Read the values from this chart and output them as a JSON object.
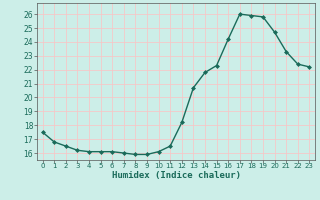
{
  "x": [
    0,
    1,
    2,
    3,
    4,
    5,
    6,
    7,
    8,
    9,
    10,
    11,
    12,
    13,
    14,
    15,
    16,
    17,
    18,
    19,
    20,
    21,
    22,
    23
  ],
  "y": [
    17.5,
    16.8,
    16.5,
    16.2,
    16.1,
    16.1,
    16.1,
    16.0,
    15.9,
    15.9,
    16.1,
    16.5,
    18.2,
    20.7,
    21.8,
    22.3,
    24.2,
    26.0,
    25.9,
    25.8,
    24.7,
    23.3,
    22.4,
    22.2
  ],
  "title": "",
  "xlabel": "Humidex (Indice chaleur)",
  "ylabel": "",
  "xlim": [
    -0.5,
    23.5
  ],
  "ylim": [
    15.5,
    26.8
  ],
  "yticks": [
    16,
    17,
    18,
    19,
    20,
    21,
    22,
    23,
    24,
    25,
    26
  ],
  "xticks": [
    0,
    1,
    2,
    3,
    4,
    5,
    6,
    7,
    8,
    9,
    10,
    11,
    12,
    13,
    14,
    15,
    16,
    17,
    18,
    19,
    20,
    21,
    22,
    23
  ],
  "bg_color": "#cceee8",
  "grid_color": "#f5c8c8",
  "line_color": "#1a6b5a",
  "marker_color": "#1a6b5a",
  "axis_bg": "#cceee8",
  "xlabel_color": "#1a6b5a"
}
